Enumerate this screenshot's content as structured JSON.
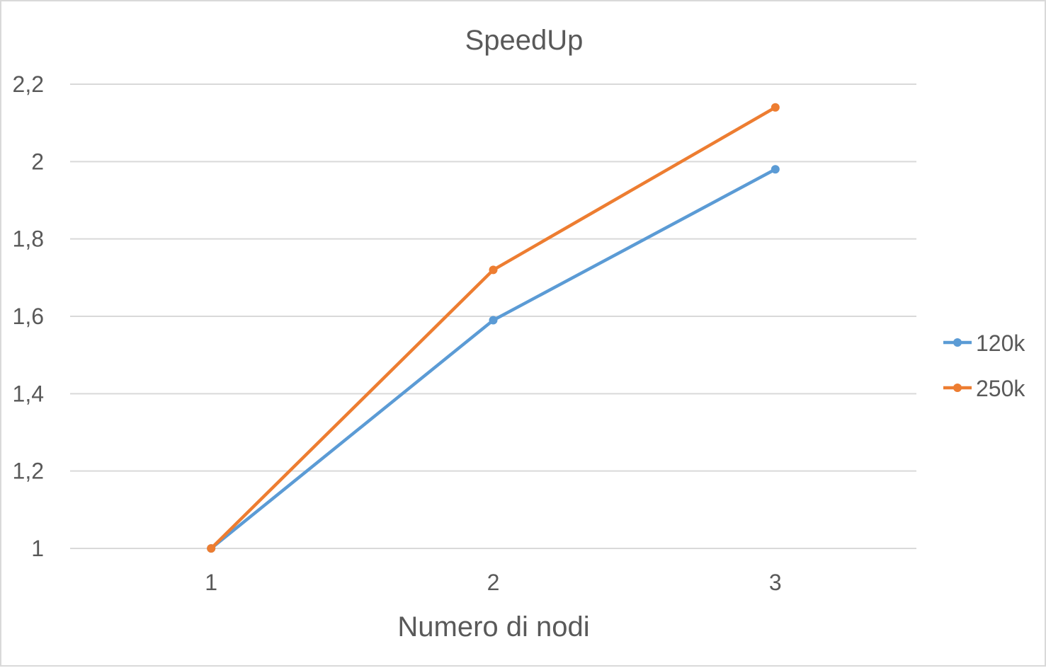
{
  "chart_data": {
    "type": "line",
    "title": "SpeedUp",
    "xlabel": "Numero di nodi",
    "ylabel": "",
    "categories": [
      "1",
      "2",
      "3"
    ],
    "x": [
      1,
      2,
      3
    ],
    "ylim": [
      1,
      2.2
    ],
    "yticks": [
      1,
      1.2,
      1.4,
      1.6,
      1.8,
      2,
      2.2
    ],
    "ytick_labels": [
      "1",
      "1,2",
      "1,4",
      "1,6",
      "1,8",
      "2",
      "2,2"
    ],
    "grid": true,
    "legend": "right",
    "series": [
      {
        "name": "120k",
        "color": "#5b9bd5",
        "values": [
          1.0,
          1.59,
          1.98
        ]
      },
      {
        "name": "250k",
        "color": "#ed7d31",
        "values": [
          1.0,
          1.72,
          2.14
        ]
      }
    ]
  }
}
